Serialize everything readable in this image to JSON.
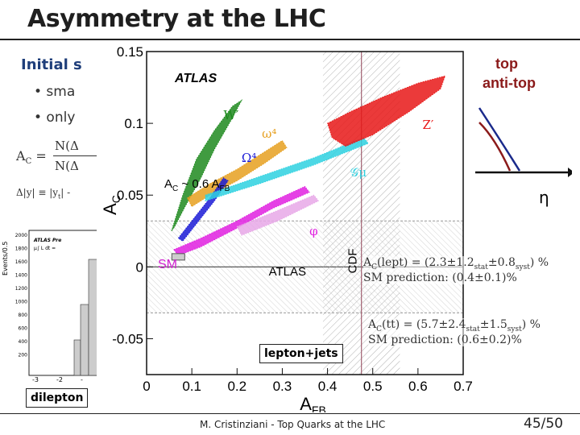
{
  "slide": {
    "title": "Asymmetry at the LHC",
    "footer": "M. Cristinziani - Top Quarks at the LHC",
    "page": "45/50"
  },
  "left_panel": {
    "heading": "Initial s",
    "bullets": [
      "• sma",
      "• only"
    ],
    "ac_symbol": "A",
    "ac_sub": "C",
    "ac_eq": "=",
    "frac_num": "N(Δ",
    "frac_den": "N(Δ",
    "delta_def": "Δ|y| ≡ |y",
    "delta_sub": "t",
    "delta_tail": "| -",
    "inset": {
      "ylabel": "Events/0.5",
      "yticks": [
        "2000",
        "1800",
        "1600",
        "1400",
        "1200",
        "1000",
        "800",
        "600",
        "400",
        "200"
      ],
      "xticks": [
        "-3",
        "-2",
        "-"
      ],
      "legend_title": "ATLAS Pre",
      "legend_line": "μ∫  L dt ="
    },
    "dilepton_label": "dilepton"
  },
  "right_panel": {
    "top_label": "top",
    "antitop_label": "anti-top",
    "eta_label": "η"
  },
  "results": {
    "lept_prefix": "A",
    "lept_sub": "C",
    "lept_mid": "(lept) = (2.3±1.2",
    "lept_stat": "stat",
    "lept_mid2": "±0.8",
    "lept_syst": "syst",
    "lept_tail": ") %",
    "lept_sm": "SM prediction: (0.4±0.1)%",
    "tt_prefix": "A",
    "tt_sub": "C",
    "tt_mid": "(tt) = (5.7±2.4",
    "tt_stat": "stat",
    "tt_mid2": "±1.5",
    "tt_syst": "syst",
    "tt_tail": ") %",
    "tt_sm": "SM prediction: (0.6±0.2)%",
    "ljets_label": "lepton+jets"
  },
  "chart_data": {
    "type": "scatter",
    "title": "",
    "brand": "ATLAS",
    "xlabel": "A",
    "xlabel_sub": "FB",
    "ylabel": "A",
    "ylabel_sub": "C",
    "xlim": [
      0,
      0.7
    ],
    "ylim": [
      -0.075,
      0.15
    ],
    "xticks": [
      0,
      0.1,
      0.2,
      0.3,
      0.4,
      0.5,
      0.6,
      0.7
    ],
    "xtick_labels": [
      "0",
      "0.1",
      "0.2",
      "0.3",
      "0.4",
      "0.5",
      "0.6",
      "0.7"
    ],
    "yticks": [
      -0.05,
      0,
      0.05,
      0.1,
      0.15
    ],
    "ytick_labels": [
      "-0.05",
      "0",
      "0.05",
      "0.1",
      "0.15"
    ],
    "cdf_band": {
      "label": "CDF",
      "center": 0.475,
      "low": 0.39,
      "high": 0.56
    },
    "atlas_band": {
      "label": "ATLAS",
      "center": 0.0,
      "low": -0.032,
      "high": 0.032
    },
    "ac_annotation": "A",
    "ac_annotation_sub": "C",
    "ac_annotation_tail": "~ 0.6 A",
    "ac_annotation_tail_sub": "FB",
    "sm_point": {
      "label": "SM",
      "x": 0.07,
      "y": 0.007
    },
    "models": [
      {
        "name": "W'",
        "label": "W′",
        "color": "#1e8a1e",
        "polygon": [
          [
            0.055,
            0.025
          ],
          [
            0.08,
            0.05
          ],
          [
            0.11,
            0.075
          ],
          [
            0.15,
            0.095
          ],
          [
            0.19,
            0.112
          ],
          [
            0.21,
            0.116
          ],
          [
            0.19,
            0.104
          ],
          [
            0.15,
            0.082
          ],
          [
            0.12,
            0.062
          ],
          [
            0.085,
            0.042
          ],
          [
            0.062,
            0.028
          ]
        ],
        "label_at": [
          0.17,
          0.103
        ]
      },
      {
        "name": "omega4",
        "label": "ω⁴",
        "color": "#e6a020",
        "polygon": [
          [
            0.09,
            0.048
          ],
          [
            0.14,
            0.058
          ],
          [
            0.2,
            0.068
          ],
          [
            0.26,
            0.08
          ],
          [
            0.3,
            0.088
          ],
          [
            0.31,
            0.083
          ],
          [
            0.26,
            0.072
          ],
          [
            0.2,
            0.06
          ],
          [
            0.14,
            0.05
          ],
          [
            0.1,
            0.042
          ]
        ],
        "label_at": [
          0.255,
          0.09
        ]
      },
      {
        "name": "Omega4",
        "label": "Ω⁴",
        "color": "#1a1ad6",
        "polygon": [
          [
            0.07,
            0.02
          ],
          [
            0.1,
            0.032
          ],
          [
            0.14,
            0.048
          ],
          [
            0.17,
            0.062
          ],
          [
            0.18,
            0.06
          ],
          [
            0.15,
            0.046
          ],
          [
            0.11,
            0.03
          ],
          [
            0.08,
            0.018
          ]
        ],
        "label_at": [
          0.21,
          0.073
        ]
      },
      {
        "name": "Gmu",
        "label": "𝒢μ",
        "color": "#2ed1e0",
        "polygon": [
          [
            0.13,
            0.05
          ],
          [
            0.25,
            0.063
          ],
          [
            0.37,
            0.076
          ],
          [
            0.48,
            0.09
          ],
          [
            0.49,
            0.086
          ],
          [
            0.37,
            0.071
          ],
          [
            0.25,
            0.058
          ],
          [
            0.13,
            0.046
          ]
        ],
        "label_at": [
          0.45,
          0.063
        ]
      },
      {
        "name": "Z'",
        "label": "Z′",
        "color": "#e81818",
        "polygon": [
          [
            0.4,
            0.1
          ],
          [
            0.45,
            0.108
          ],
          [
            0.52,
            0.118
          ],
          [
            0.6,
            0.128
          ],
          [
            0.66,
            0.133
          ],
          [
            0.65,
            0.124
          ],
          [
            0.58,
            0.108
          ],
          [
            0.5,
            0.092
          ],
          [
            0.44,
            0.084
          ],
          [
            0.41,
            0.09
          ]
        ],
        "label_at": [
          0.61,
          0.096
        ]
      },
      {
        "name": "phi",
        "label": "φ",
        "color": "#e020e0",
        "polygon": [
          [
            0.06,
            0.012
          ],
          [
            0.12,
            0.02
          ],
          [
            0.2,
            0.032
          ],
          [
            0.28,
            0.046
          ],
          [
            0.35,
            0.056
          ],
          [
            0.36,
            0.052
          ],
          [
            0.28,
            0.041
          ],
          [
            0.2,
            0.027
          ],
          [
            0.12,
            0.014
          ],
          [
            0.07,
            0.008
          ]
        ],
        "label_at": [
          0.36,
          0.022
        ]
      },
      {
        "name": "phi-tail",
        "label": "",
        "color": "#e8a8e8",
        "polygon": [
          [
            0.2,
            0.028
          ],
          [
            0.28,
            0.038
          ],
          [
            0.37,
            0.05
          ],
          [
            0.38,
            0.046
          ],
          [
            0.29,
            0.032
          ],
          [
            0.21,
            0.022
          ]
        ],
        "label_at": [
          0,
          0
        ]
      }
    ]
  }
}
